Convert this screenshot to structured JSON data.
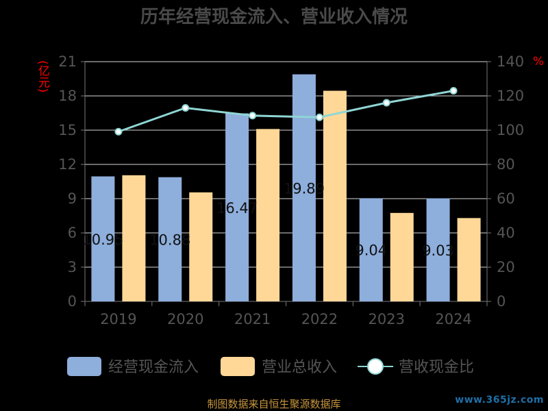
{
  "chart_data": {
    "type": "bar",
    "title": "历年经营现金流入、营业收入情况",
    "categories": [
      "2019",
      "2020",
      "2021",
      "2022",
      "2023",
      "2024"
    ],
    "ylabel_left": "(亿元)",
    "ylabel_right": "%",
    "ylim_left": [
      0,
      21
    ],
    "yticks_left": [
      0,
      3,
      6,
      9,
      12,
      15,
      18,
      21
    ],
    "ylim_right": [
      0,
      140
    ],
    "yticks_right": [
      0,
      20,
      40,
      60,
      80,
      100,
      120,
      140
    ],
    "series": [
      {
        "name": "经营现金流入",
        "kind": "bar",
        "axis": "left",
        "color": "#8eaedc",
        "values": [
          10.95,
          10.88,
          16.47,
          19.89,
          9.04,
          9.03
        ],
        "labels": [
          "10.95",
          "10.88",
          "16.47",
          "19.89",
          "9.04",
          "9.03"
        ]
      },
      {
        "name": "营业总收入",
        "kind": "bar",
        "axis": "left",
        "color": "#ffd898",
        "values": [
          11.05,
          9.55,
          15.1,
          18.45,
          7.75,
          7.3
        ]
      },
      {
        "name": "营收现金比",
        "kind": "line",
        "axis": "right",
        "color": "#8fd6d4",
        "values": [
          99.1,
          113.0,
          108.5,
          107.5,
          116.0,
          123.0
        ]
      }
    ],
    "grid": true,
    "legend": "bottom"
  },
  "footer": {
    "source": "制图数据来自恒生聚源数据库",
    "watermark": "www.365jz.com"
  }
}
